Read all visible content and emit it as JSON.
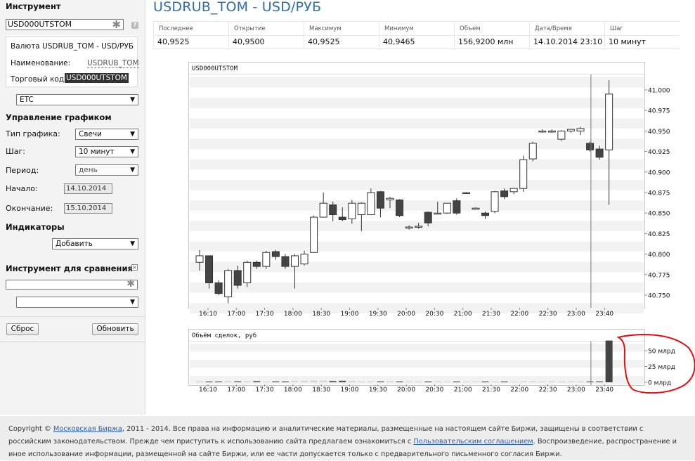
{
  "sidebar": {
    "instrument_title": "Инструмент",
    "instrument_value": "USD000UTSTOM",
    "info": {
      "currency_label": "Валюта USDRUB_TOM - USD/РУБ",
      "name_label": "Наименование:",
      "name_value": "USDRUB_TOM",
      "code_label": "Торговый код:",
      "code_value": "USD000UTSTOM"
    },
    "board_select": "ETC",
    "control_title": "Управление графиком",
    "chart_type_label": "Тип графика:",
    "chart_type_value": "Свечи",
    "step_label": "Шаг:",
    "step_value": "10 минут",
    "period_label": "Период:",
    "period_value": "день",
    "start_label": "Начало:",
    "start_value": "14.10.2014",
    "end_label": "Окончание:",
    "end_value": "15.10.2014",
    "indicators_title": "Индикаторы",
    "indicators_value": "Добавить",
    "compare_title": "Инструмент для сравнения",
    "compare_input": "",
    "compare_select": "",
    "reset_button": "Сброс",
    "update_button": "Обновить"
  },
  "header": {
    "title": "USDRUB_TOM - USD/РУБ",
    "stats": [
      {
        "head": "Последнее",
        "value": "40,9525"
      },
      {
        "head": "Открытие",
        "value": "40,9500"
      },
      {
        "head": "Максимум",
        "value": "40,9525"
      },
      {
        "head": "Минимум",
        "value": "40,9465"
      },
      {
        "head": "Объем",
        "value": "156,9200 млн"
      },
      {
        "head": "Дата/Время",
        "value": "14.10.2014 23:10"
      },
      {
        "head": "Шаг",
        "value": "10 минут"
      }
    ]
  },
  "footer": {
    "copyright_prefix": "Copyright ©",
    "exchange_link": "Московская Биржа",
    "text_1": ", 2011 - 2014. Все права на информацию и аналитические материалы, размещенные на настоящем сайте Биржи, защищены в соответствии с российским законодательством. Прежде чем приступить к использованию сайта предлагаем ознакомиться с",
    "agreement_link": "Пользовательским соглашением",
    "text_2": ". Воспроизведение, распространение и иное использование информации, размещенной на сайте Биржи, или ее части допускается только с предварительного письменного согласия Биржи."
  },
  "colors": {
    "accent": "#2e6ea5",
    "up_candle": "#ffffff",
    "down_candle": "#444444",
    "annotation": "#e01010"
  },
  "chart_data": [
    {
      "type": "candlestick",
      "title": "USD000UTSTOM",
      "ylim": [
        40.735,
        41.015
      ],
      "yticks": [
        "40.750",
        "40.775",
        "40.800",
        "40.825",
        "40.850",
        "40.875",
        "40.900",
        "40.925",
        "40.950",
        "40.975",
        "41.000"
      ],
      "xticks": [
        "16:10",
        "17:00",
        "17:30",
        "18:00",
        "18:30",
        "19:00",
        "19:30",
        "20:00",
        "20:30",
        "21:00",
        "21:30",
        "22:00",
        "22:30",
        "23:00",
        "23:40"
      ],
      "vertical_marker_at": "23:10",
      "grid": "horizontal bands",
      "candles": [
        {
          "o": 40.79,
          "h": 40.805,
          "l": 40.78,
          "c": 40.798
        },
        {
          "o": 40.798,
          "h": 40.798,
          "l": 40.758,
          "c": 40.765
        },
        {
          "o": 40.765,
          "h": 40.768,
          "l": 40.75,
          "c": 40.752
        },
        {
          "o": 40.748,
          "h": 40.782,
          "l": 40.74,
          "c": 40.78
        },
        {
          "o": 40.78,
          "h": 40.786,
          "l": 40.758,
          "c": 40.762
        },
        {
          "o": 40.765,
          "h": 40.792,
          "l": 40.76,
          "c": 40.79
        },
        {
          "o": 40.79,
          "h": 40.792,
          "l": 40.782,
          "c": 40.785
        },
        {
          "o": 40.785,
          "h": 40.804,
          "l": 40.782,
          "c": 40.802
        },
        {
          "o": 40.803,
          "h": 40.805,
          "l": 40.793,
          "c": 40.797
        },
        {
          "o": 40.797,
          "h": 40.8,
          "l": 40.782,
          "c": 40.785
        },
        {
          "o": 40.785,
          "h": 40.8,
          "l": 40.758,
          "c": 40.798
        },
        {
          "o": 40.788,
          "h": 40.804,
          "l": 40.786,
          "c": 40.8
        },
        {
          "o": 40.802,
          "h": 40.847,
          "l": 40.802,
          "c": 40.845
        },
        {
          "o": 40.845,
          "h": 40.875,
          "l": 40.845,
          "c": 40.862
        },
        {
          "o": 40.86,
          "h": 40.864,
          "l": 40.84,
          "c": 40.848
        },
        {
          "o": 40.845,
          "h": 40.857,
          "l": 40.84,
          "c": 40.842
        },
        {
          "o": 40.843,
          "h": 40.866,
          "l": 40.837,
          "c": 40.862
        },
        {
          "o": 40.848,
          "h": 40.863,
          "l": 40.828,
          "c": 40.862
        },
        {
          "o": 40.848,
          "h": 40.88,
          "l": 40.848,
          "c": 40.875
        },
        {
          "o": 40.876,
          "h": 40.877,
          "l": 40.845,
          "c": 40.856
        },
        {
          "o": 40.866,
          "h": 40.87,
          "l": 40.856,
          "c": 40.868
        },
        {
          "o": 40.866,
          "h": 40.867,
          "l": 40.845,
          "c": 40.847
        },
        {
          "o": 40.833,
          "h": 40.835,
          "l": 40.83,
          "c": 40.833
        },
        {
          "o": 40.834,
          "h": 40.838,
          "l": 40.831,
          "c": 40.834
        },
        {
          "o": 40.851,
          "h": 40.852,
          "l": 40.834,
          "c": 40.838
        },
        {
          "o": 40.85,
          "h": 40.864,
          "l": 40.85,
          "c": 40.85
        },
        {
          "o": 40.85,
          "h": 40.862,
          "l": 40.849,
          "c": 40.862
        },
        {
          "o": 40.865,
          "h": 40.868,
          "l": 40.848,
          "c": 40.85
        },
        {
          "o": 40.875,
          "h": 40.876,
          "l": 40.875,
          "c": 40.875
        },
        {
          "o": 40.856,
          "h": 40.857,
          "l": 40.855,
          "c": 40.856
        },
        {
          "o": 40.85,
          "h": 40.852,
          "l": 40.843,
          "c": 40.847
        },
        {
          "o": 40.852,
          "h": 40.877,
          "l": 40.85,
          "c": 40.876
        },
        {
          "o": 40.877,
          "h": 40.88,
          "l": 40.867,
          "c": 40.87
        },
        {
          "o": 40.876,
          "h": 40.88,
          "l": 40.873,
          "c": 40.88
        },
        {
          "o": 40.88,
          "h": 40.92,
          "l": 40.876,
          "c": 40.915
        },
        {
          "o": 40.916,
          "h": 40.937,
          "l": 40.913,
          "c": 40.935
        },
        {
          "o": 40.95,
          "h": 40.952,
          "l": 40.948,
          "c": 40.95
        },
        {
          "o": 40.95,
          "h": 40.952,
          "l": 40.948,
          "c": 40.95
        },
        {
          "o": 40.94,
          "h": 40.951,
          "l": 40.938,
          "c": 40.95
        },
        {
          "o": 40.95,
          "h": 40.952,
          "l": 40.948,
          "c": 40.952
        },
        {
          "o": 40.95,
          "h": 40.955,
          "l": 40.945,
          "c": 40.953
        },
        {
          "o": 40.935,
          "h": 40.937,
          "l": 40.925,
          "c": 40.927
        },
        {
          "o": 40.928,
          "h": 40.932,
          "l": 40.915,
          "c": 40.918
        },
        {
          "o": 40.927,
          "h": 41.012,
          "l": 40.86,
          "c": 40.995
        }
      ]
    },
    {
      "type": "bar",
      "title": "Объём сделок, руб",
      "ylabel": "млрд",
      "yticks": [
        "50 млрд",
        "25 млрд",
        "0 млрд"
      ],
      "ylim": [
        0,
        70
      ],
      "xticks": [
        "16:10",
        "17:00",
        "17:30",
        "18:00",
        "18:30",
        "19:00",
        "19:30",
        "20:00",
        "20:30",
        "21:00",
        "21:30",
        "22:00",
        "22:30",
        "23:00",
        "23:40"
      ],
      "values": [
        1.5,
        1.2,
        1.0,
        1.8,
        1.5,
        1.2,
        1.8,
        1.2,
        1.4,
        1.2,
        2.0,
        2.4,
        2.6,
        2.4,
        2.0,
        2.4,
        1.8,
        1.4,
        1.2,
        1.4,
        1.6,
        1.2,
        1.0,
        1.4,
        1.0,
        1.4,
        1.0,
        1.2,
        1.2,
        1.0,
        1.2,
        1.0,
        1.0,
        1.2,
        1.4,
        1.4,
        1.2,
        1.6,
        1.2,
        1.4,
        1.2,
        1.2,
        1.4,
        66.0
      ],
      "annotation": "red hand-drawn circle around the last volume bar"
    }
  ]
}
